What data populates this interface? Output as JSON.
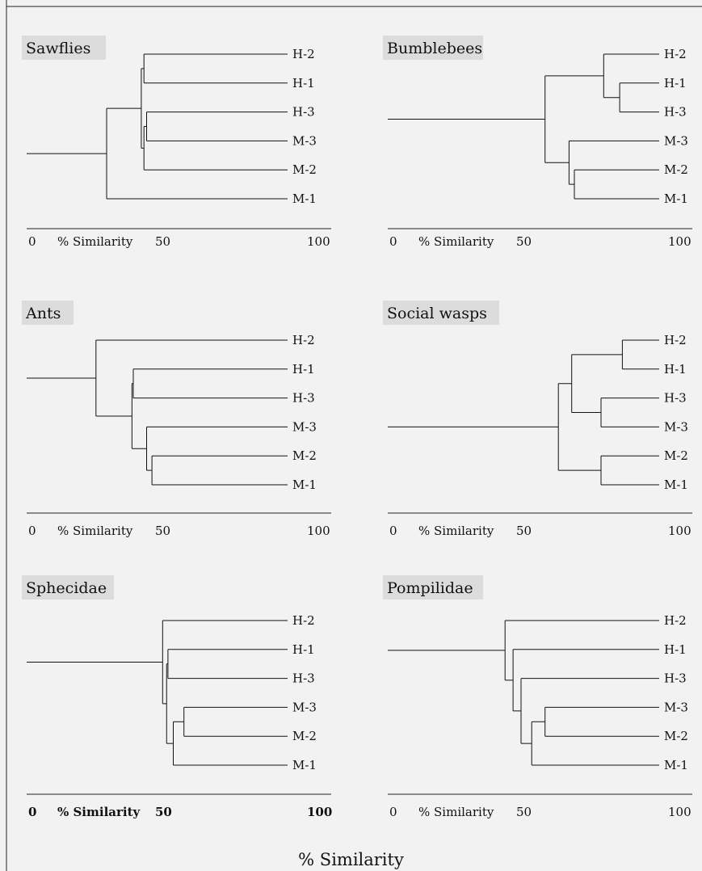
{
  "chart_data": [
    {
      "type": "dendrogram",
      "title": "Sawflies",
      "leaves": [
        "H-2",
        "H-1",
        "H-3",
        "M-3",
        "M-2",
        "M-1"
      ],
      "merges": [
        {
          "a": "H-3",
          "b": "M-3",
          "similarity": 45
        },
        {
          "a": "H-2",
          "b": "H-1",
          "similarity": 44
        },
        {
          "a": "M-2",
          "b": "H-3+M-3",
          "similarity": 44
        },
        {
          "a": "H-2+H-1",
          "b": "H-3+M-3+M-2",
          "similarity": 43
        },
        {
          "a": "all-H+M",
          "b": "M-1",
          "similarity": 30
        }
      ],
      "xlim": [
        0,
        100
      ],
      "tick_labels": [
        "0",
        "% Similarity",
        "50",
        "100"
      ],
      "bold_ticks": false
    },
    {
      "type": "dendrogram",
      "title": "Bumblebees",
      "leaves": [
        "H-2",
        "H-1",
        "H-3",
        "M-3",
        "M-2",
        "M-1"
      ],
      "merges": [
        {
          "a": "H-1",
          "b": "H-3",
          "similarity": 87
        },
        {
          "a": "H-2",
          "b": "H-1+H-3",
          "similarity": 81
        },
        {
          "a": "M-2",
          "b": "M-1",
          "similarity": 70
        },
        {
          "a": "M-3",
          "b": "M-2+M-1",
          "similarity": 68
        },
        {
          "a": "H",
          "b": "M",
          "similarity": 59
        }
      ],
      "xlim": [
        0,
        100
      ],
      "tick_labels": [
        "0",
        "% Similarity",
        "50",
        "100"
      ],
      "bold_ticks": false
    },
    {
      "type": "dendrogram",
      "title": "Ants",
      "leaves": [
        "H-2",
        "H-1",
        "H-3",
        "M-3",
        "M-2",
        "M-1"
      ],
      "merges": [
        {
          "a": "M-2",
          "b": "M-1",
          "similarity": 47
        },
        {
          "a": "M-3",
          "b": "M-2+M-1",
          "similarity": 45
        },
        {
          "a": "H-1",
          "b": "H-3",
          "similarity": 40
        },
        {
          "a": "H-1+H-3",
          "b": "M",
          "similarity": 39.5
        },
        {
          "a": "H-2",
          "b": "rest",
          "similarity": 26
        }
      ],
      "xlim": [
        0,
        100
      ],
      "tick_labels": [
        "0",
        "% Similarity",
        "50",
        "100"
      ],
      "bold_ticks": false
    },
    {
      "type": "dendrogram",
      "title": "Social wasps",
      "leaves": [
        "H-2",
        "H-1",
        "H-3",
        "M-3",
        "M-2",
        "M-1"
      ],
      "merges": [
        {
          "a": "H-2",
          "b": "H-1",
          "similarity": 88
        },
        {
          "a": "H-3",
          "b": "M-3",
          "similarity": 80
        },
        {
          "a": "M-2",
          "b": "M-1",
          "similarity": 80
        },
        {
          "a": "H-2+H-1",
          "b": "H-3+M-3",
          "similarity": 69
        },
        {
          "a": "all-other",
          "b": "M-2+M-1",
          "similarity": 64
        }
      ],
      "xlim": [
        0,
        100
      ],
      "tick_labels": [
        "0",
        "% Similarity",
        "50",
        "100"
      ],
      "bold_ticks": false
    },
    {
      "type": "dendrogram",
      "title": "Sphecidae",
      "leaves": [
        "H-2",
        "H-1",
        "H-3",
        "M-3",
        "M-2",
        "M-1"
      ],
      "merges": [
        {
          "a": "M-3",
          "b": "M-2",
          "similarity": 59
        },
        {
          "a": "M-3+M-2",
          "b": "M-1",
          "similarity": 55
        },
        {
          "a": "H-1",
          "b": "H-3",
          "similarity": 53
        },
        {
          "a": "H-1+H-3",
          "b": "M",
          "similarity": 52.5
        },
        {
          "a": "H-2",
          "b": "rest",
          "similarity": 51
        }
      ],
      "xlim": [
        0,
        100
      ],
      "tick_labels": [
        "0",
        "% Similarity",
        "50",
        "100"
      ],
      "bold_ticks": true
    },
    {
      "type": "dendrogram",
      "title": "Pompilidae",
      "leaves": [
        "H-2",
        "H-1",
        "H-3",
        "M-3",
        "M-2",
        "M-1"
      ],
      "merges": [
        {
          "a": "M-3",
          "b": "M-2",
          "similarity": 59
        },
        {
          "a": "M-3+M-2",
          "b": "M-1",
          "similarity": 54
        },
        {
          "a": "H-3",
          "b": "M",
          "similarity": 50
        },
        {
          "a": "H-1",
          "b": "H-3+M",
          "similarity": 47
        },
        {
          "a": "H-2",
          "b": "rest",
          "similarity": 44
        }
      ],
      "xlim": [
        0,
        100
      ],
      "tick_labels": [
        "0",
        "% Similarity",
        "50",
        "100"
      ],
      "bold_ticks": false
    }
  ],
  "global_xlabel": "% Similarity"
}
